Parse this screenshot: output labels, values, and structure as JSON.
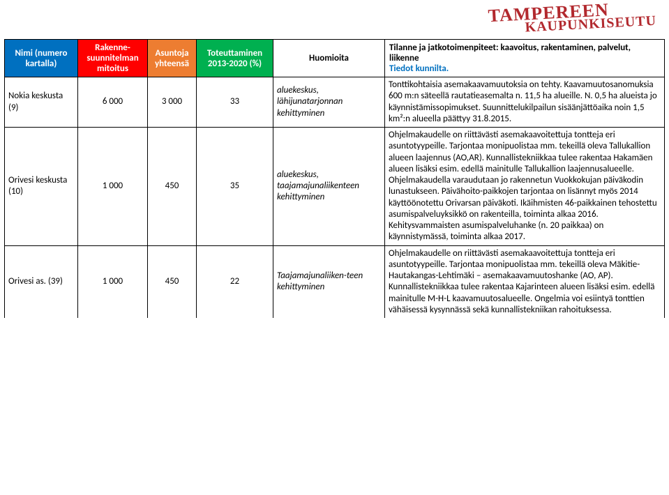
{
  "logo": {
    "line1": "TAMPEREEN",
    "line2": "KAUPUNKISEUTU"
  },
  "headers": {
    "c1": "Nimi (numero kartalla)",
    "c2": "Rakenne-suunnitelman mitoitus",
    "c3": "Asuntoja yhteensä",
    "c4": "Toteuttaminen 2013-2020 (%)",
    "c5": "Huomioita",
    "c6_main": "Tilanne ja jatkotoimenpiteet: kaavoitus, rakentaminen, palvelut, liikenne",
    "c6_sub": "Tiedot kunnilta."
  },
  "rows": [
    {
      "name": "Nokia keskusta (9)",
      "mitoitus": "6 000",
      "asuntoja": "3 000",
      "toteut": "33",
      "huom": "aluekeskus, lähijunatarjonnan kehittyminen",
      "notes": "Tonttikohtaisia asemakaavamuutoksia on tehty. Kaavamuutosanomuksia 600 m:n säteellä rautatieasemalta n. 11,5 ha alueille. N. 0,5 ha alueista jo käynnistämissopimukset. Suunnittelukilpailun sisäänjättöaika noin 1,5 km²:n alueella päättyy 31.8.2015."
    },
    {
      "name": "Orivesi keskusta (10)",
      "mitoitus": "1 000",
      "asuntoja": "450",
      "toteut": "35",
      "huom": "aluekeskus, taajamajunaliikenteen kehittyminen",
      "notes": "Ohjelmakaudelle on riittävästi asemakaavoitettuja tontteja eri asuntotyypeille. Tarjontaa monipuolistaa mm. tekeillä oleva Tallukallion alueen laajennus (AO,AR). Kunnallistekniikkaa tulee rakentaa Hakamäen alueen lisäksi esim. edellä mainitulle Tallukallion laajennusalueelle.\nOhjelmakaudella varaudutaan jo rakennetun Vuokkokujan päiväkodin lunastukseen. Päivähoito-paikkojen tarjontaa on lisännyt myös 2014 käyttöönotettu Orivarsan päiväkoti. Ikäihmisten 46-paikkainen tehostettu asumispalveluyksikkö on rakenteilla, toiminta alkaa 2016. Kehitysvammaisten asumispalveluhanke (n. 20 paikkaa) on käynnistymässä, toiminta alkaa 2017."
    },
    {
      "name": "Orivesi as. (39)",
      "mitoitus": "1 000",
      "asuntoja": "450",
      "toteut": "22",
      "huom": "Taajamajunaliiken-teen kehittyminen",
      "notes": "Ohjelmakaudelle on riittävästi asemakaavoitettuja tontteja eri asuntotyypeille. Tarjontaa monipuolistaa mm. tekeillä oleva Mäkitie-Hautakangas-Lehtimäki – asemakaavamuutoshanke (AO, AP). Kunnallistekniikkaa tulee rakentaa Kajarinteen alueen lisäksi esim. edellä mainitulle M-H-L kaavamuutosalueelle.\nOngelmia voi esiintyä tonttien vähäisessä kysynnässä sekä kunnallistekniikan rahoituksessa."
    }
  ],
  "colors": {
    "header_blue": "#0070c0",
    "header_red": "#ff0000",
    "header_orange": "#ed7d31",
    "header_green": "#00b050",
    "logo_red": "#b2292e",
    "border": "#000000",
    "background": "#ffffff"
  }
}
